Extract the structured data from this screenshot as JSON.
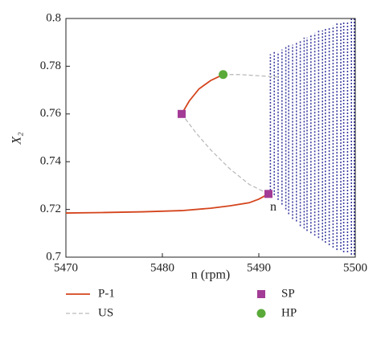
{
  "chart_data": {
    "type": "bifurcation",
    "x_label": "n (rpm)",
    "y_label": "X₂",
    "xlim": [
      5470,
      5500
    ],
    "ylim": [
      0.7,
      0.8
    ],
    "xticks": [
      5470,
      5480,
      5490,
      5500
    ],
    "yticks": [
      0.7,
      0.72,
      0.74,
      0.76,
      0.78,
      0.8
    ],
    "annotation": "n",
    "series": [
      {
        "name": "P-1",
        "color": "#d4441c",
        "style": "solid",
        "x": [
          5470,
          5474,
          5478,
          5482,
          5485,
          5487,
          5489,
          5490,
          5491,
          null,
          5482,
          5482.8,
          5483.8,
          5485,
          5486.3
        ],
        "values": [
          0.7185,
          0.7187,
          0.719,
          0.7195,
          0.7205,
          0.7215,
          0.7228,
          0.7243,
          0.7265,
          null,
          0.76,
          0.7655,
          0.7705,
          0.774,
          0.7765
        ]
      },
      {
        "name": "US",
        "color": "#bbbbbb",
        "style": "dashed",
        "x": [
          5491,
          5489,
          5487,
          5485,
          5483.5,
          5482,
          null,
          5486.3,
          5488,
          5490,
          5492
        ],
        "values": [
          0.7265,
          0.7305,
          0.737,
          0.745,
          0.752,
          0.76,
          null,
          0.7765,
          0.7765,
          0.776,
          0.7755
        ]
      },
      {
        "name": "SP",
        "color": "#a33c96",
        "marker": "square",
        "x": [
          5482,
          5491
        ],
        "values": [
          0.76,
          0.7265
        ]
      },
      {
        "name": "HP",
        "color": "#5aaa3a",
        "marker": "circle",
        "x": [
          5486.3
        ],
        "values": [
          0.7765
        ]
      }
    ],
    "bands": {
      "color": "#3a3aa0",
      "x": [
        5491.2,
        5491.6,
        5492.0,
        5492.4,
        5492.8,
        5493.1,
        5493.5,
        5493.9,
        5494.3,
        5494.7,
        5495.0,
        5495.4,
        5495.8,
        5496.2,
        5496.6,
        5496.9,
        5497.3,
        5497.7,
        5498.1,
        5498.5,
        5498.8,
        5499.2,
        5499.6,
        5499.9
      ],
      "low": [
        0.728,
        0.726,
        0.724,
        0.722,
        0.72,
        0.718,
        0.716,
        0.715,
        0.713,
        0.712,
        0.711,
        0.71,
        0.709,
        0.708,
        0.707,
        0.706,
        0.705,
        0.704,
        0.703,
        0.703,
        0.702,
        0.702,
        0.701,
        0.701
      ],
      "high": [
        0.785,
        0.786,
        0.786,
        0.787,
        0.788,
        0.789,
        0.789,
        0.79,
        0.791,
        0.792,
        0.792,
        0.793,
        0.794,
        0.795,
        0.795,
        0.796,
        0.796,
        0.797,
        0.798,
        0.798,
        0.799,
        0.799,
        0.8,
        0.8
      ]
    }
  }
}
